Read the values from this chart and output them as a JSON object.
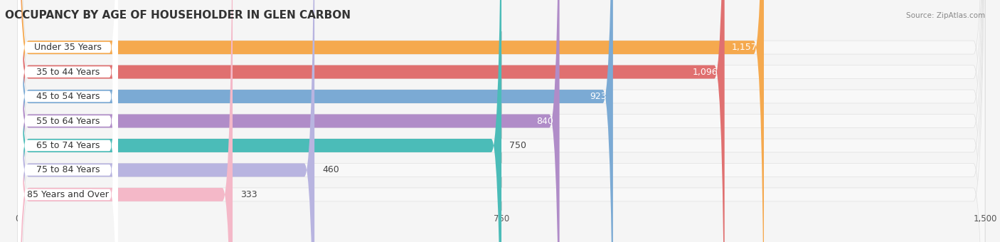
{
  "title": "OCCUPANCY BY AGE OF HOUSEHOLDER IN GLEN CARBON",
  "source": "Source: ZipAtlas.com",
  "categories": [
    "Under 35 Years",
    "35 to 44 Years",
    "45 to 54 Years",
    "55 to 64 Years",
    "65 to 74 Years",
    "75 to 84 Years",
    "85 Years and Over"
  ],
  "values": [
    1157,
    1096,
    923,
    840,
    750,
    460,
    333
  ],
  "bar_colors": [
    "#F5A94E",
    "#E07070",
    "#7BAAD4",
    "#B08CC8",
    "#4BBCB8",
    "#B8B4E0",
    "#F4B8C8"
  ],
  "background_color": "#f5f5f5",
  "bar_bg_color": "#ffffff",
  "xlim": [
    -20,
    1500
  ],
  "xmin": 0,
  "xmax": 1500,
  "xticks": [
    0,
    750,
    1500
  ],
  "title_fontsize": 11,
  "label_fontsize": 9,
  "value_fontsize": 9,
  "bar_height": 0.55,
  "white_label_threshold": 900
}
